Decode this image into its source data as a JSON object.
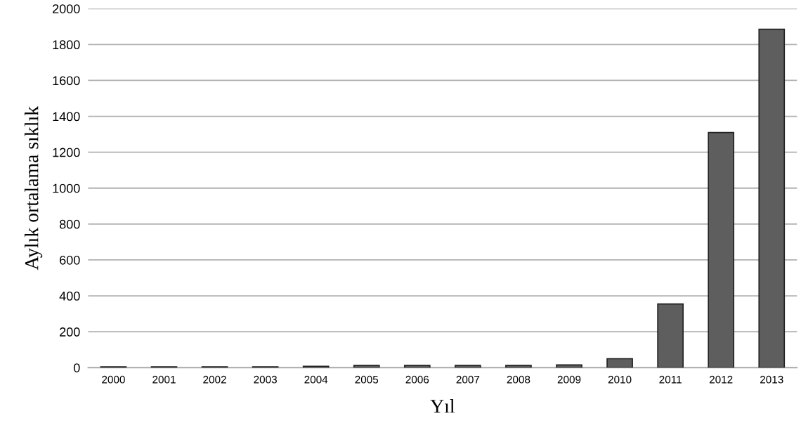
{
  "chart_data": {
    "type": "bar",
    "xlabel": "Yıl",
    "ylabel": "Aylık ortalama sıklık",
    "categories": [
      "2000",
      "2001",
      "2002",
      "2003",
      "2004",
      "2005",
      "2006",
      "2007",
      "2008",
      "2009",
      "2010",
      "2011",
      "2012",
      "2013"
    ],
    "values": [
      5,
      5,
      5,
      5,
      8,
      12,
      12,
      12,
      12,
      15,
      50,
      355,
      1310,
      1885
    ],
    "color": "#5e5e5e",
    "ylim": [
      0,
      2000
    ],
    "yticks": [
      0,
      200,
      400,
      600,
      800,
      1000,
      1200,
      1400,
      1600,
      1800,
      2000
    ],
    "grid": "y",
    "legend": false
  }
}
